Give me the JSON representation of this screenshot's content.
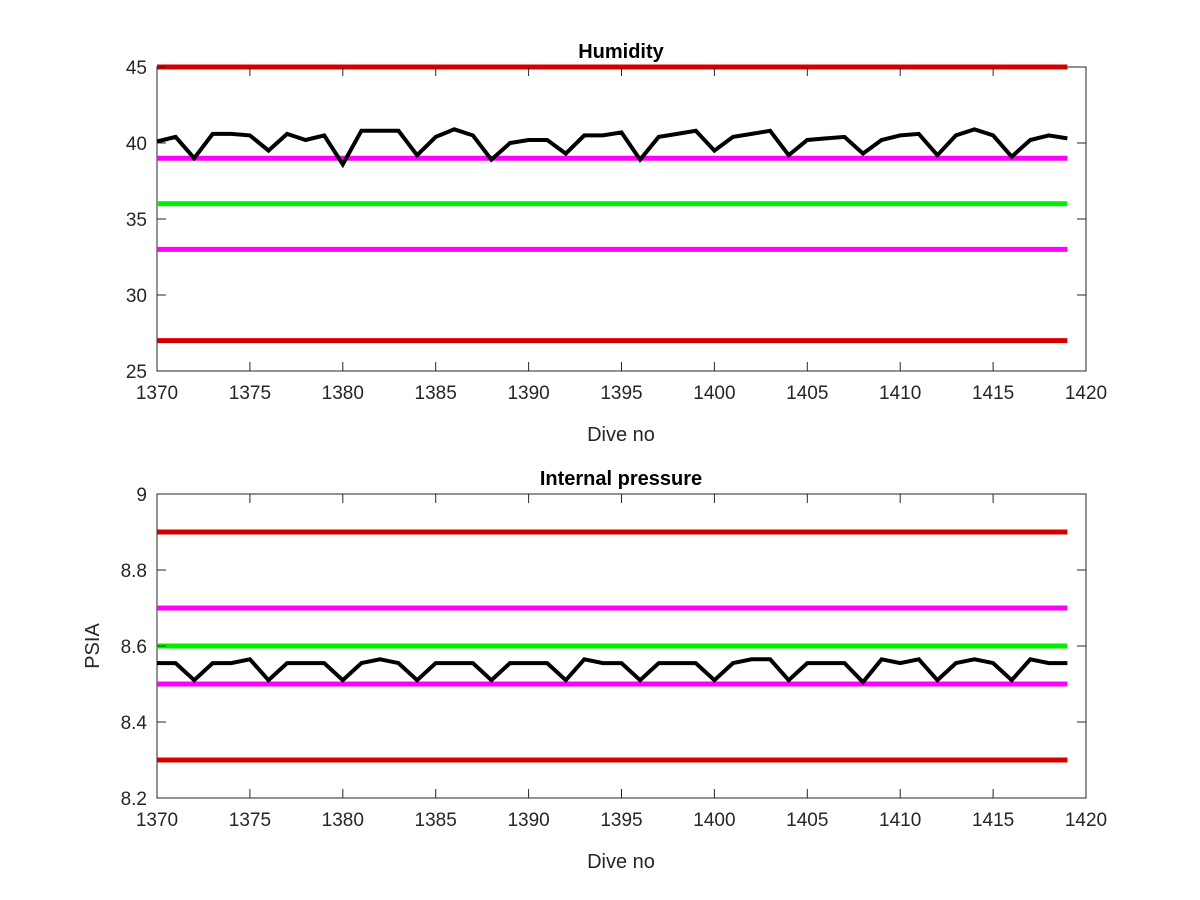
{
  "chart_data": [
    {
      "type": "line",
      "title": "Humidity",
      "xlabel": "Dive no",
      "ylabel": "",
      "xlim": [
        1370,
        1420
      ],
      "ylim": [
        25,
        45
      ],
      "xticks": [
        1370,
        1375,
        1380,
        1385,
        1390,
        1395,
        1400,
        1405,
        1410,
        1415,
        1420
      ],
      "yticks": [
        25,
        30,
        35,
        40,
        45
      ],
      "grid": false,
      "threshold_lines": [
        {
          "value": 45,
          "color": "#d40000",
          "x_range": [
            1370,
            1419
          ]
        },
        {
          "value": 39,
          "color": "#ff00ff",
          "x_range": [
            1370,
            1419
          ]
        },
        {
          "value": 36,
          "color": "#00ee00",
          "x_range": [
            1370,
            1419
          ]
        },
        {
          "value": 33,
          "color": "#ff00ff",
          "x_range": [
            1370,
            1419
          ]
        },
        {
          "value": 27,
          "color": "#d40000",
          "x_range": [
            1370,
            1419
          ]
        }
      ],
      "series": [
        {
          "color": "#000000",
          "x": [
            1370,
            1371,
            1372,
            1373,
            1374,
            1375,
            1376,
            1377,
            1378,
            1379,
            1380,
            1381,
            1382,
            1383,
            1384,
            1385,
            1386,
            1387,
            1388,
            1389,
            1390,
            1391,
            1392,
            1393,
            1394,
            1395,
            1396,
            1397,
            1398,
            1399,
            1400,
            1401,
            1402,
            1403,
            1404,
            1405,
            1406,
            1407,
            1408,
            1409,
            1410,
            1411,
            1412,
            1413,
            1414,
            1415,
            1416,
            1417,
            1418,
            1419
          ],
          "values": [
            40.1,
            40.4,
            39.0,
            40.6,
            40.6,
            40.5,
            39.5,
            40.6,
            40.2,
            40.5,
            38.6,
            40.8,
            40.8,
            40.8,
            39.2,
            40.4,
            40.9,
            40.5,
            38.9,
            40.0,
            40.2,
            40.2,
            39.3,
            40.5,
            40.5,
            40.7,
            38.9,
            40.4,
            40.6,
            40.8,
            39.5,
            40.4,
            40.6,
            40.8,
            39.2,
            40.2,
            40.3,
            40.4,
            39.3,
            40.2,
            40.5,
            40.6,
            39.2,
            40.5,
            40.9,
            40.5,
            39.1,
            40.2,
            40.5,
            40.3
          ]
        }
      ]
    },
    {
      "type": "line",
      "title": "Internal pressure",
      "xlabel": "Dive no",
      "ylabel": "PSIA",
      "xlim": [
        1370,
        1420
      ],
      "ylim": [
        8.2,
        9.0
      ],
      "xticks": [
        1370,
        1375,
        1380,
        1385,
        1390,
        1395,
        1400,
        1405,
        1410,
        1415,
        1420
      ],
      "yticks": [
        8.2,
        8.4,
        8.6,
        8.8,
        9
      ],
      "ytick_labels": [
        "8.2",
        "8.4",
        "8.6",
        "8.8",
        "9"
      ],
      "grid": false,
      "threshold_lines": [
        {
          "value": 8.9,
          "color": "#d40000",
          "x_range": [
            1370,
            1419
          ]
        },
        {
          "value": 8.7,
          "color": "#ff00ff",
          "x_range": [
            1370,
            1419
          ]
        },
        {
          "value": 8.6,
          "color": "#00ee00",
          "x_range": [
            1370,
            1419
          ]
        },
        {
          "value": 8.5,
          "color": "#ff00ff",
          "x_range": [
            1370,
            1419
          ]
        },
        {
          "value": 8.3,
          "color": "#d40000",
          "x_range": [
            1370,
            1419
          ]
        }
      ],
      "series": [
        {
          "color": "#000000",
          "x": [
            1370,
            1371,
            1372,
            1373,
            1374,
            1375,
            1376,
            1377,
            1378,
            1379,
            1380,
            1381,
            1382,
            1383,
            1384,
            1385,
            1386,
            1387,
            1388,
            1389,
            1390,
            1391,
            1392,
            1393,
            1394,
            1395,
            1396,
            1397,
            1398,
            1399,
            1400,
            1401,
            1402,
            1403,
            1404,
            1405,
            1406,
            1407,
            1408,
            1409,
            1410,
            1411,
            1412,
            1413,
            1414,
            1415,
            1416,
            1417,
            1418,
            1419
          ],
          "values": [
            8.555,
            8.555,
            8.51,
            8.555,
            8.555,
            8.565,
            8.51,
            8.555,
            8.555,
            8.555,
            8.51,
            8.555,
            8.565,
            8.555,
            8.51,
            8.555,
            8.555,
            8.555,
            8.51,
            8.555,
            8.555,
            8.555,
            8.51,
            8.565,
            8.555,
            8.555,
            8.51,
            8.555,
            8.555,
            8.555,
            8.51,
            8.555,
            8.565,
            8.565,
            8.51,
            8.555,
            8.555,
            8.555,
            8.505,
            8.565,
            8.555,
            8.565,
            8.51,
            8.555,
            8.565,
            8.555,
            8.51,
            8.565,
            8.555,
            8.555
          ]
        }
      ]
    }
  ]
}
